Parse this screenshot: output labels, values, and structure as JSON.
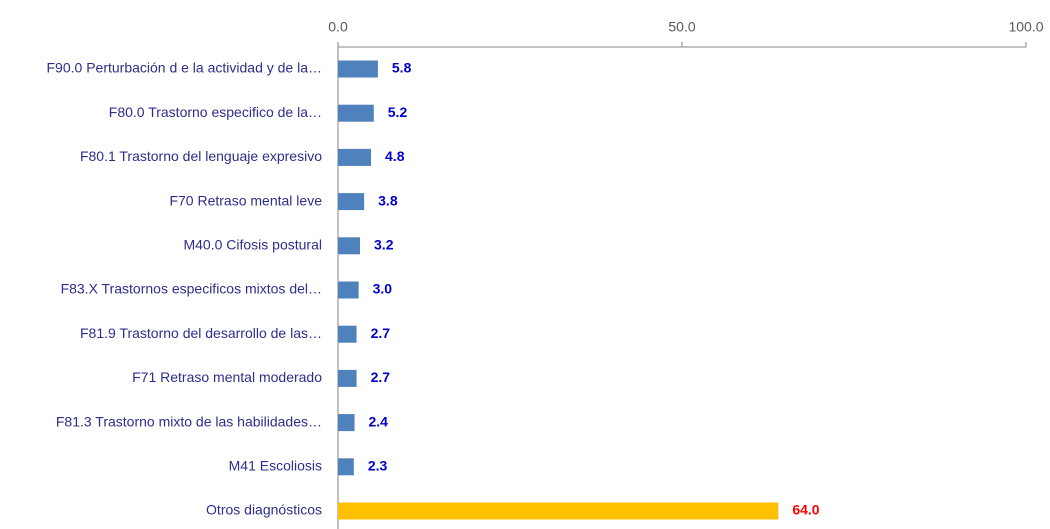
{
  "chart_data": {
    "type": "hbar",
    "categories": [
      "F90.0 Perturbación d e la actividad y de la…",
      "F80.0  Trastorno especifico de la…",
      "F80.1  Trastorno del lenguaje expresivo",
      "F70  Retraso mental leve",
      "M40.0  Cifosis postural",
      "F83.X Trastornos especificos mixtos del…",
      "F81.9  Trastorno del desarrollo de las…",
      "F71 Retraso mental moderado",
      "F81.3 Trastorno mixto de las habilidades…",
      "M41  Escoliosis",
      "Otros diagnósticos"
    ],
    "values": [
      5.8,
      5.2,
      4.8,
      3.8,
      3.2,
      3.0,
      2.7,
      2.7,
      2.4,
      2.3,
      64.0
    ],
    "value_labels": [
      "5.8",
      "5.2",
      "4.8",
      "3.8",
      "3.2",
      "3.0",
      "2.7",
      "2.7",
      "2.4",
      "2.3",
      "64.0"
    ],
    "colors": [
      "#4f81bd",
      "#4f81bd",
      "#4f81bd",
      "#4f81bd",
      "#4f81bd",
      "#4f81bd",
      "#4f81bd",
      "#4f81bd",
      "#4f81bd",
      "#4f81bd",
      "#ffc000"
    ],
    "label_colors": [
      "#0000cc",
      "#0000cc",
      "#0000cc",
      "#0000cc",
      "#0000cc",
      "#0000cc",
      "#0000cc",
      "#0000cc",
      "#0000cc",
      "#0000cc",
      "#ff0000"
    ],
    "xlim": [
      0,
      100
    ],
    "xticks": [
      {
        "value": 0,
        "label": "0.0"
      },
      {
        "value": 50,
        "label": "50.0"
      },
      {
        "value": 100,
        "label": "100.0"
      }
    ]
  }
}
